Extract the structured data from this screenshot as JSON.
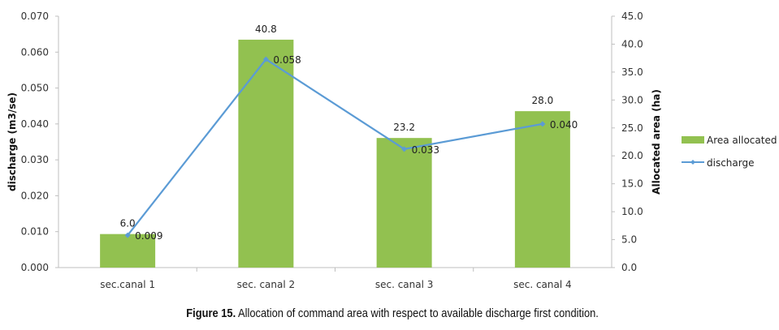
{
  "chart_data": {
    "type": "bar+line",
    "categories": [
      "sec.canal 1",
      "sec. canal 2",
      "sec. canal 3",
      "sec. canal 4"
    ],
    "series": [
      {
        "name": "Area allocated",
        "kind": "bar",
        "axis": "right",
        "values": [
          6.0,
          40.8,
          23.2,
          28.0
        ],
        "labels": [
          "6.0",
          "40.8",
          "23.2",
          "28.0"
        ],
        "color": "#92c150"
      },
      {
        "name": "discharge",
        "kind": "line",
        "axis": "left",
        "values": [
          0.009,
          0.058,
          0.033,
          0.04
        ],
        "labels": [
          "0.009",
          "0.058",
          "0.033",
          "0.040"
        ],
        "color": "#5b9bd5"
      }
    ],
    "ylabel_left": "discharge (m3/se)",
    "ylabel_right": "Allocated area (ha)",
    "ylim_left": [
      0,
      0.07
    ],
    "ylim_right": [
      0,
      45
    ],
    "yticks_left": [
      "0.000",
      "0.010",
      "0.020",
      "0.030",
      "0.040",
      "0.050",
      "0.060",
      "0.070"
    ],
    "yticks_right": [
      "0.0",
      "5.0",
      "10.0",
      "15.0",
      "20.0",
      "25.0",
      "30.0",
      "35.0",
      "40.0",
      "45.0"
    ],
    "grid": false,
    "legend_position": "right"
  },
  "caption": {
    "label": "Figure 15.",
    "text": " Allocation of command area with respect to available discharge first condition."
  }
}
